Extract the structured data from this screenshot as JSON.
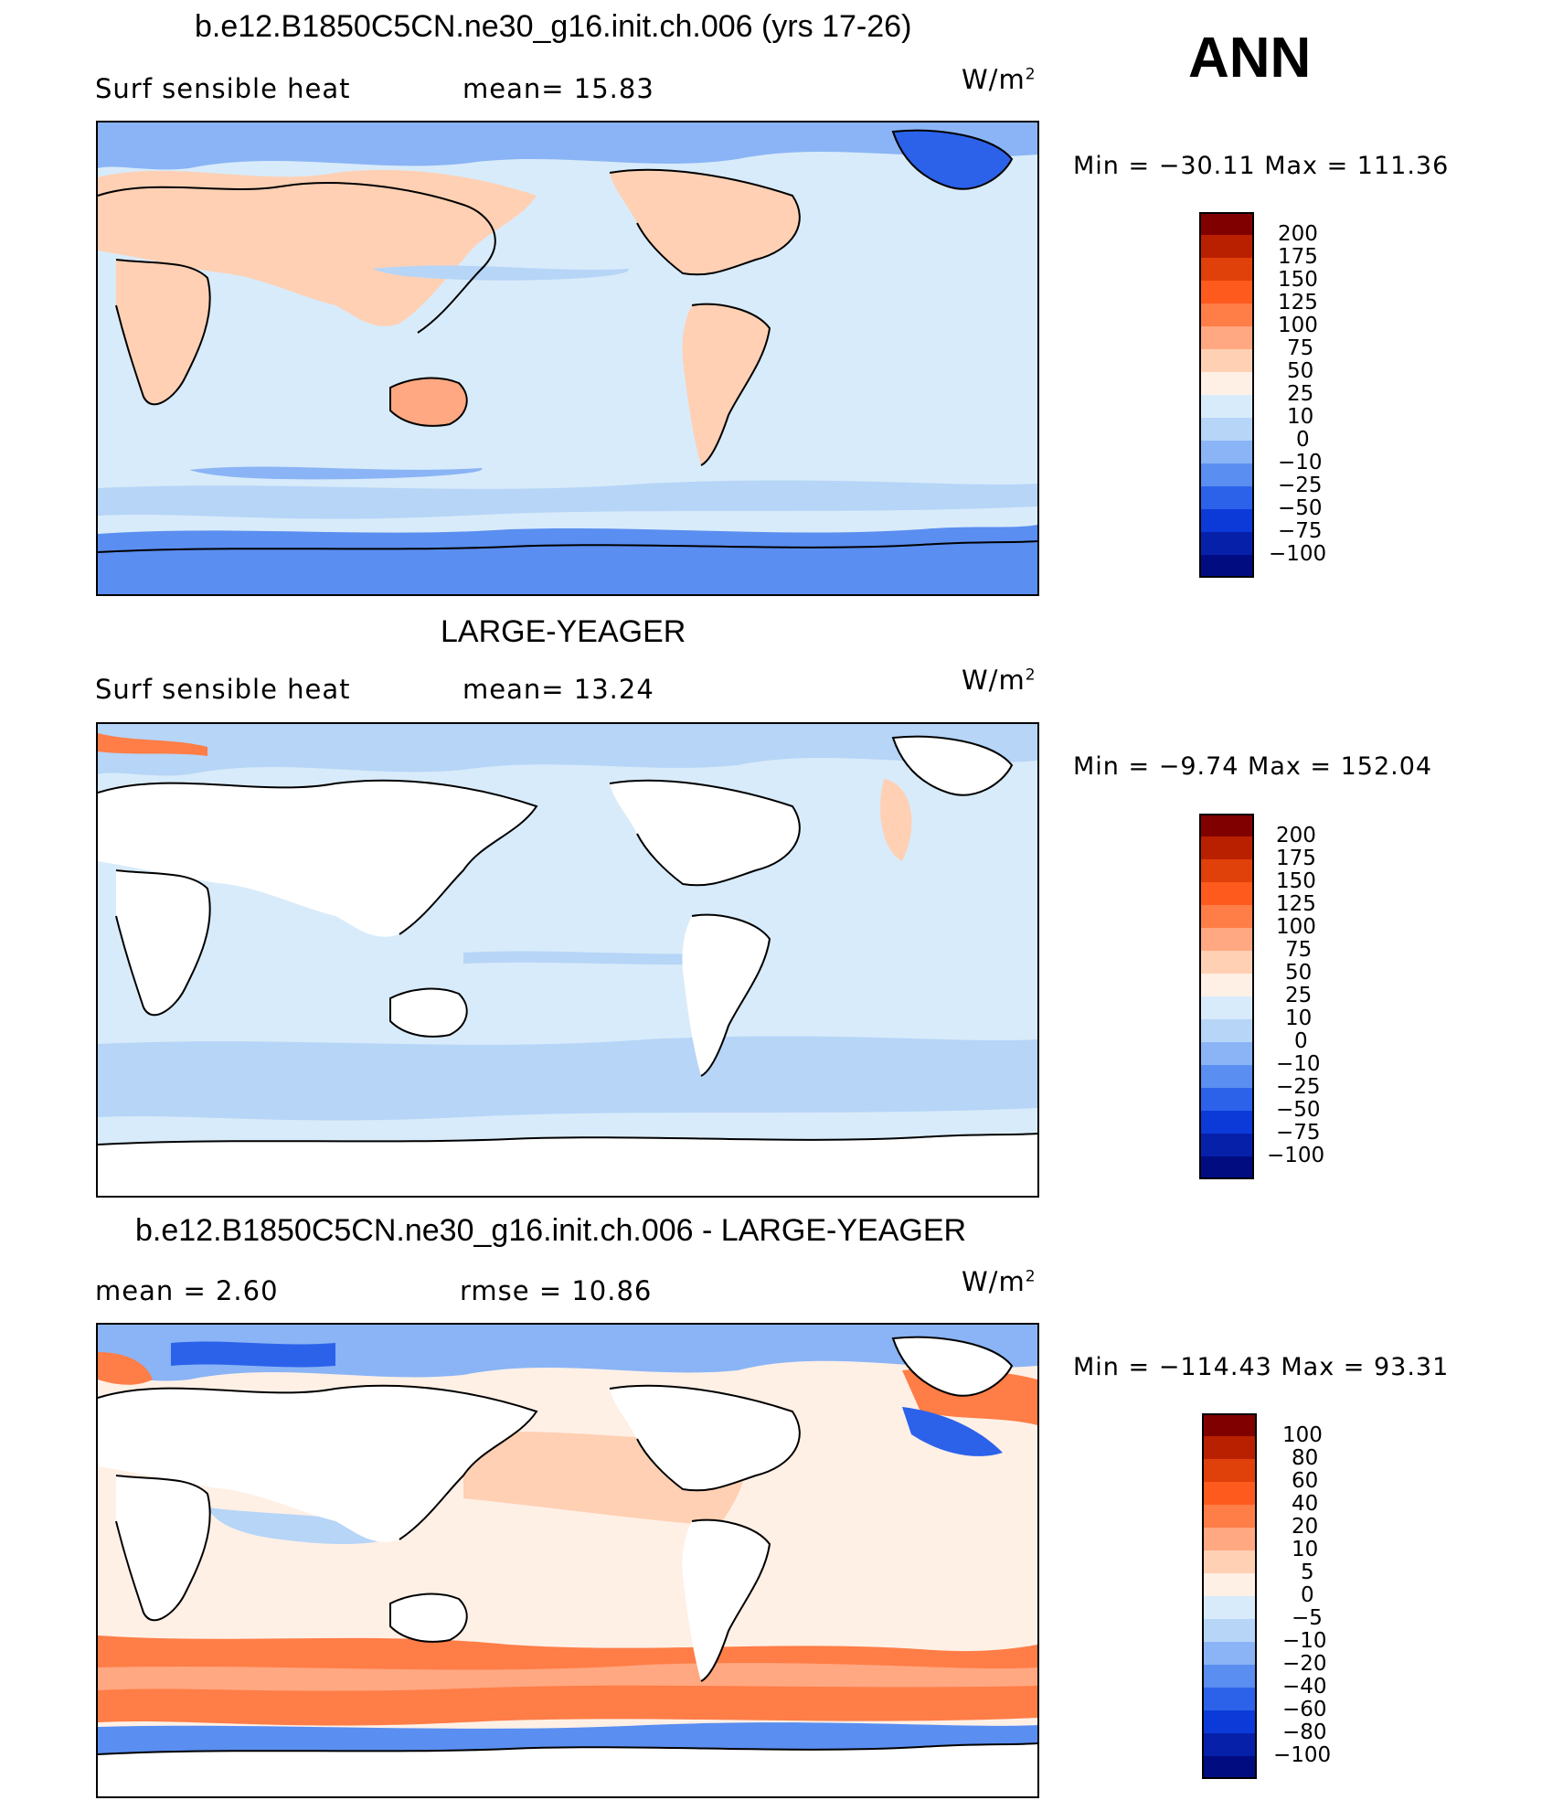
{
  "season": "ANN",
  "colors": {
    "standard": [
      "#800000",
      "#b82000",
      "#e0400a",
      "#ff5a1e",
      "#ff7d47",
      "#ffa882",
      "#ffd0b4",
      "#fff0e6",
      "#d8ebfa",
      "#b6d5f7",
      "#8ab4f5",
      "#5a8ef0",
      "#2c62ea",
      "#0c3ad8",
      "#0620aa",
      "#000c80"
    ],
    "diff": [
      "#800000",
      "#b82000",
      "#e0400a",
      "#ff5a1e",
      "#ff7d47",
      "#ffa882",
      "#ffd0b4",
      "#fff0e6",
      "#d8ebfa",
      "#b6d5f7",
      "#8ab4f5",
      "#5a8ef0",
      "#2c62ea",
      "#0c3ad8",
      "#0620aa",
      "#000c80"
    ]
  },
  "panels": [
    {
      "title": "b.e12.B1850C5CN.ne30_g16.init.ch.006 (yrs 17-26)",
      "left_label": "Surf  sensible  heat",
      "stat_label": "mean=   15.83",
      "units": "W/m",
      "units_sup": "2",
      "min_label": "Min  =  −30.11  Max  =  111.36",
      "levels": [
        "200",
        "175",
        "150",
        "125",
        "100",
        "75",
        "50",
        "25",
        "10",
        "0",
        "−10",
        "−25",
        "−50",
        "−75",
        "−100"
      ]
    },
    {
      "title": "LARGE-YEAGER",
      "left_label": "Surf  sensible  heat",
      "stat_label": "mean=   13.24",
      "units": "W/m",
      "units_sup": "2",
      "min_label": "Min  =    −9.74  Max  =  152.04",
      "levels": [
        "200",
        "175",
        "150",
        "125",
        "100",
        "75",
        "50",
        "25",
        "10",
        "0",
        "−10",
        "−25",
        "−50",
        "−75",
        "−100"
      ]
    },
    {
      "title": "b.e12.B1850C5CN.ne30_g16.init.ch.006 - LARGE-YEAGER",
      "left_label": "mean  =     2.60",
      "stat_label": "rmse  =    10.86",
      "units": "W/m",
      "units_sup": "2",
      "min_label": "Min  =  −114.43  Max  =    93.31",
      "levels": [
        "100",
        "80",
        "60",
        "40",
        "20",
        "10",
        "5",
        "0",
        "−5",
        "−10",
        "−20",
        "−40",
        "−60",
        "−80",
        "−100"
      ]
    }
  ]
}
